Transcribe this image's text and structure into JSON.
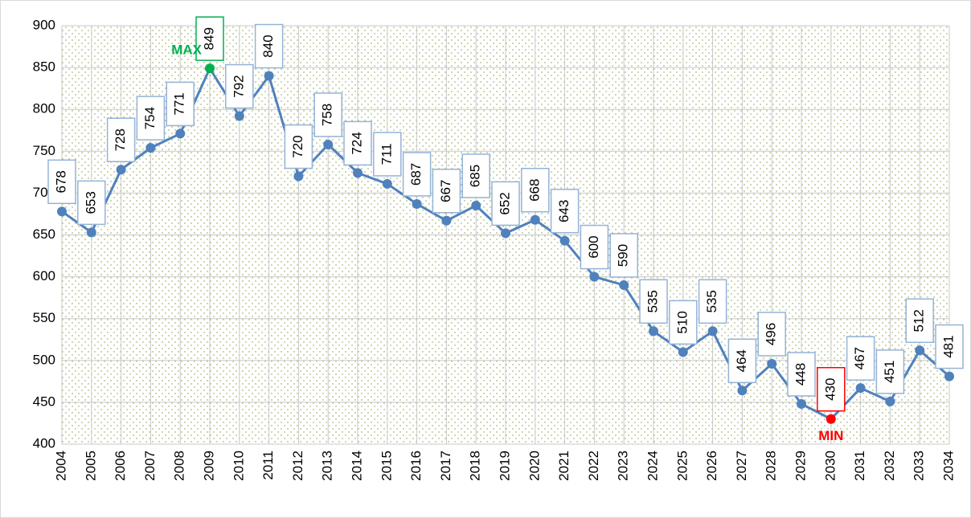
{
  "chart_data": {
    "type": "line",
    "categories": [
      "2004",
      "2005",
      "2006",
      "2007",
      "2008",
      "2009",
      "2010",
      "2011",
      "2012",
      "2013",
      "2014",
      "2015",
      "2016",
      "2017",
      "2018",
      "2019",
      "2020",
      "2021",
      "2022",
      "2023",
      "2024",
      "2025",
      "2026",
      "2027",
      "2028",
      "2029",
      "2030",
      "2031",
      "2032",
      "2033",
      "2034"
    ],
    "values": [
      678,
      653,
      728,
      754,
      771,
      849,
      792,
      840,
      720,
      758,
      724,
      711,
      687,
      667,
      685,
      652,
      668,
      643,
      600,
      590,
      535,
      510,
      535,
      464,
      496,
      448,
      430,
      467,
      451,
      512,
      481
    ],
    "color": "#4f81bd",
    "label_border_color": "#95b3d7",
    "max_label": "MAX",
    "max_color": "#00b050",
    "min_label": "MIN",
    "min_color": "#ff0000",
    "ylim": [
      400,
      900
    ],
    "yticks": [
      400,
      450,
      500,
      550,
      600,
      650,
      700,
      750,
      800,
      850,
      900
    ],
    "grid": true
  }
}
